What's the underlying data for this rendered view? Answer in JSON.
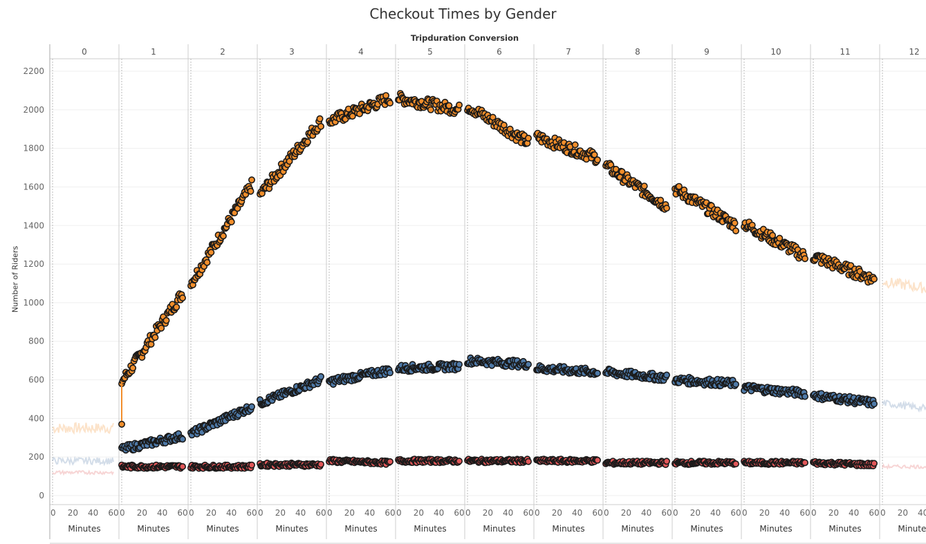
{
  "title": "Checkout Times by Gender",
  "columns_header": "Tripduration Conversion",
  "ylabel": "Number of Riders",
  "panel_xlabel": "Minutes",
  "colors": {
    "orange": "#F28E2B",
    "blue": "#4E79A7",
    "red": "#E15759",
    "outline": "#1a1a1a",
    "grid": "#efefef",
    "divider": "#cccccc"
  },
  "chart_data": {
    "type": "line",
    "title": "Checkout Times by Gender",
    "column_header": "Tripduration Conversion",
    "ylabel": "Number of Riders",
    "xlabel": "Minutes",
    "ylim": [
      0,
      2300
    ],
    "yticks": [
      0,
      200,
      400,
      600,
      800,
      1000,
      1200,
      1400,
      1600,
      1800,
      2000,
      2200
    ],
    "panels": [
      "0",
      "1",
      "2",
      "3",
      "4",
      "5",
      "6",
      "7",
      "8",
      "9",
      "10",
      "11",
      "12"
    ],
    "highlighted_panels": [
      "1",
      "2",
      "3",
      "4",
      "5",
      "6",
      "7",
      "8",
      "9",
      "10",
      "11"
    ],
    "xticks": [
      0,
      20,
      40,
      60
    ],
    "xlim": [
      0,
      60
    ],
    "series": [
      {
        "color": "orange",
        "panel_start": [
          350,
          590,
          1100,
          1560,
          1940,
          2060,
          2020,
          1860,
          1710,
          1590,
          1410,
          1240,
          1110
        ],
        "panel_end": [
          350,
          1050,
          1610,
          1940,
          2060,
          2000,
          1830,
          1750,
          1500,
          1400,
          1240,
          1120,
          1060
        ]
      },
      {
        "color": "blue",
        "panel_start": [
          180,
          240,
          320,
          480,
          590,
          660,
          700,
          660,
          640,
          600,
          560,
          520,
          480
        ],
        "panel_end": [
          180,
          310,
          460,
          600,
          650,
          670,
          680,
          640,
          610,
          580,
          530,
          480,
          440
        ]
      },
      {
        "color": "red",
        "panel_start": [
          120,
          150,
          150,
          160,
          180,
          180,
          180,
          180,
          170,
          170,
          170,
          170,
          150
        ],
        "panel_end": [
          120,
          150,
          150,
          160,
          170,
          180,
          180,
          180,
          170,
          170,
          170,
          160,
          150
        ]
      }
    ],
    "grid": true,
    "legend": "none"
  }
}
